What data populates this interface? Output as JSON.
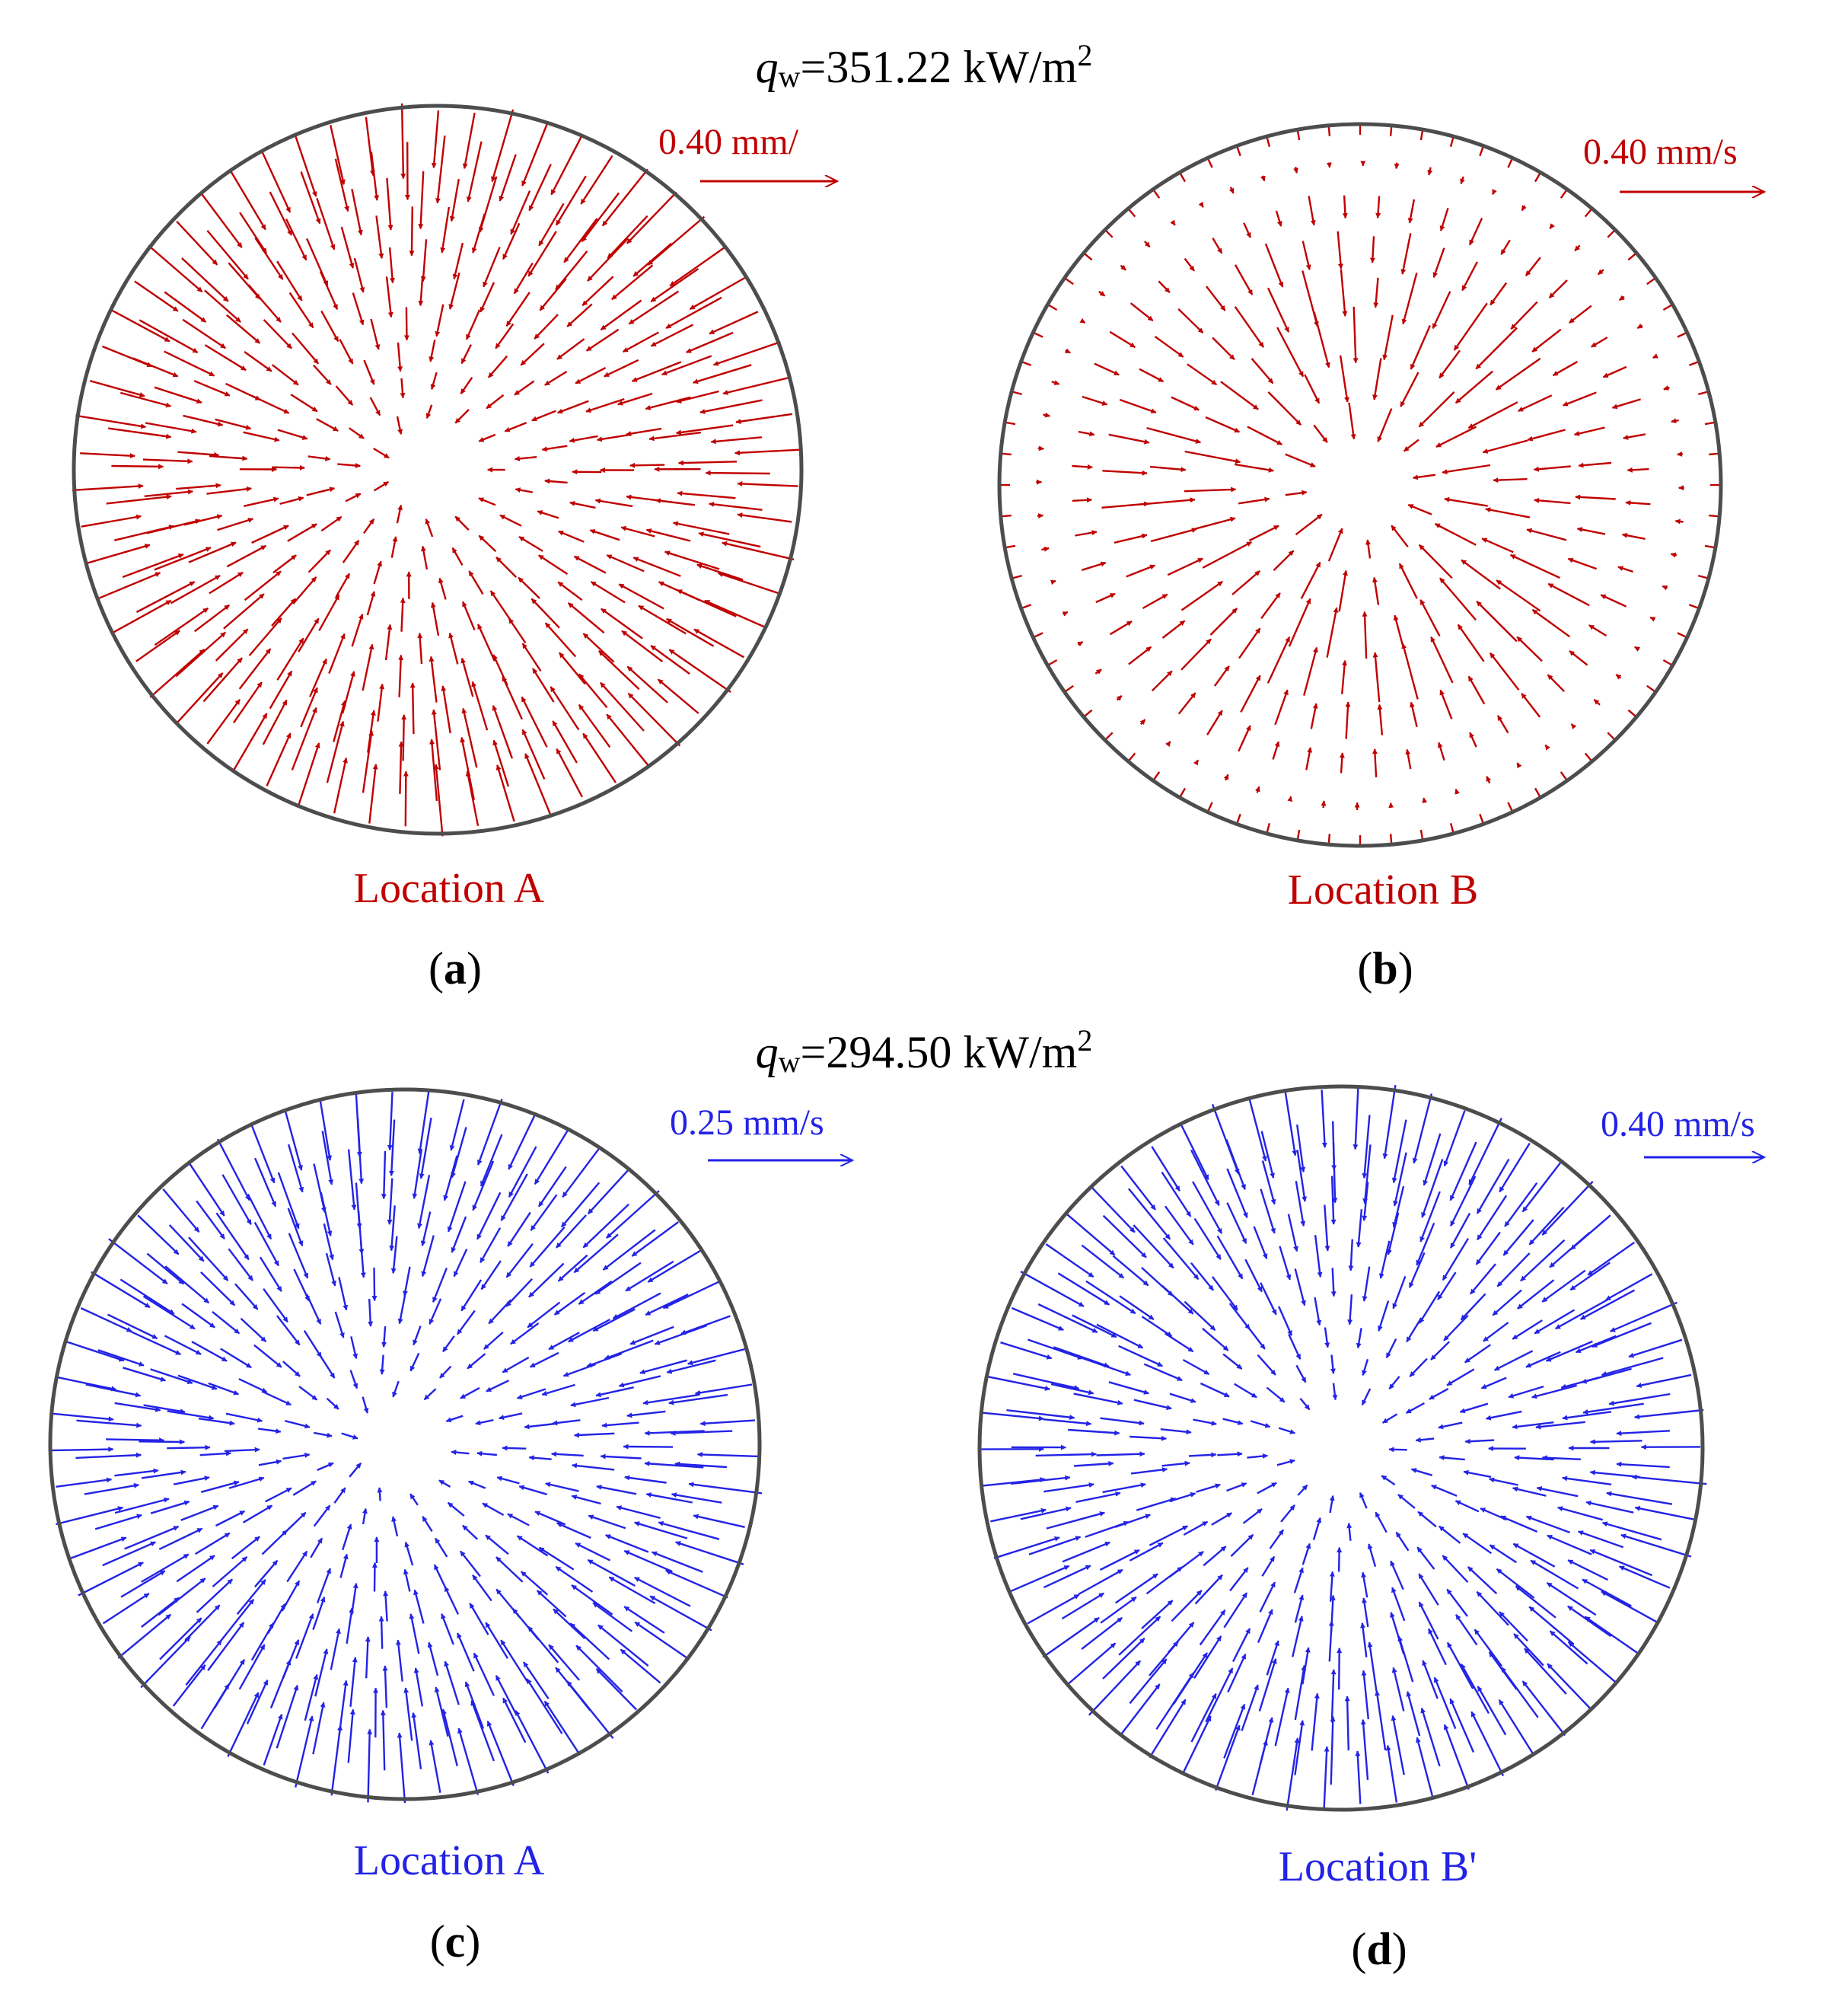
{
  "colors": {
    "red": "#c00000",
    "blue": "#2323e6",
    "boundary": "#4d4d4d",
    "text": "#000000"
  },
  "top_group": {
    "heat_flux": {
      "symbol": "q",
      "subscript": "w",
      "equals_value": "=351.22 kW/m",
      "superscript": "2"
    }
  },
  "bottom_group": {
    "heat_flux": {
      "symbol": "q",
      "subscript": "w",
      "equals_value": "=294.50 kW/m",
      "superscript": "2"
    }
  },
  "panels": [
    {
      "id": "a",
      "letter": "a",
      "location_label": "Location A",
      "scale_label": "0.40 mm/",
      "color_key": "red",
      "flow_pattern": {
        "pattern": "inward",
        "rings": 10,
        "center_offset": [
          -0.08,
          0.0
        ]
      }
    },
    {
      "id": "b",
      "letter": "b",
      "location_label": "Location B",
      "scale_label": "0.40 mm/s",
      "color_key": "red",
      "flow_pattern": {
        "pattern": "inward-weak",
        "rings": 7,
        "wall_ticks": 72
      }
    },
    {
      "id": "c",
      "letter": "c",
      "location_label": "Location A",
      "scale_label": "0.25 mm/s",
      "color_key": "blue",
      "flow_pattern": {
        "pattern": "inward",
        "rings": 11,
        "center_offset": [
          -0.08,
          0.0
        ]
      }
    },
    {
      "id": "d",
      "letter": "d",
      "location_label": "Location B'",
      "scale_label": "0.40 mm/s",
      "color_key": "blue",
      "flow_pattern": {
        "pattern": "inward",
        "rings": 11,
        "center_offset": [
          0.0,
          0.0
        ]
      }
    }
  ]
}
